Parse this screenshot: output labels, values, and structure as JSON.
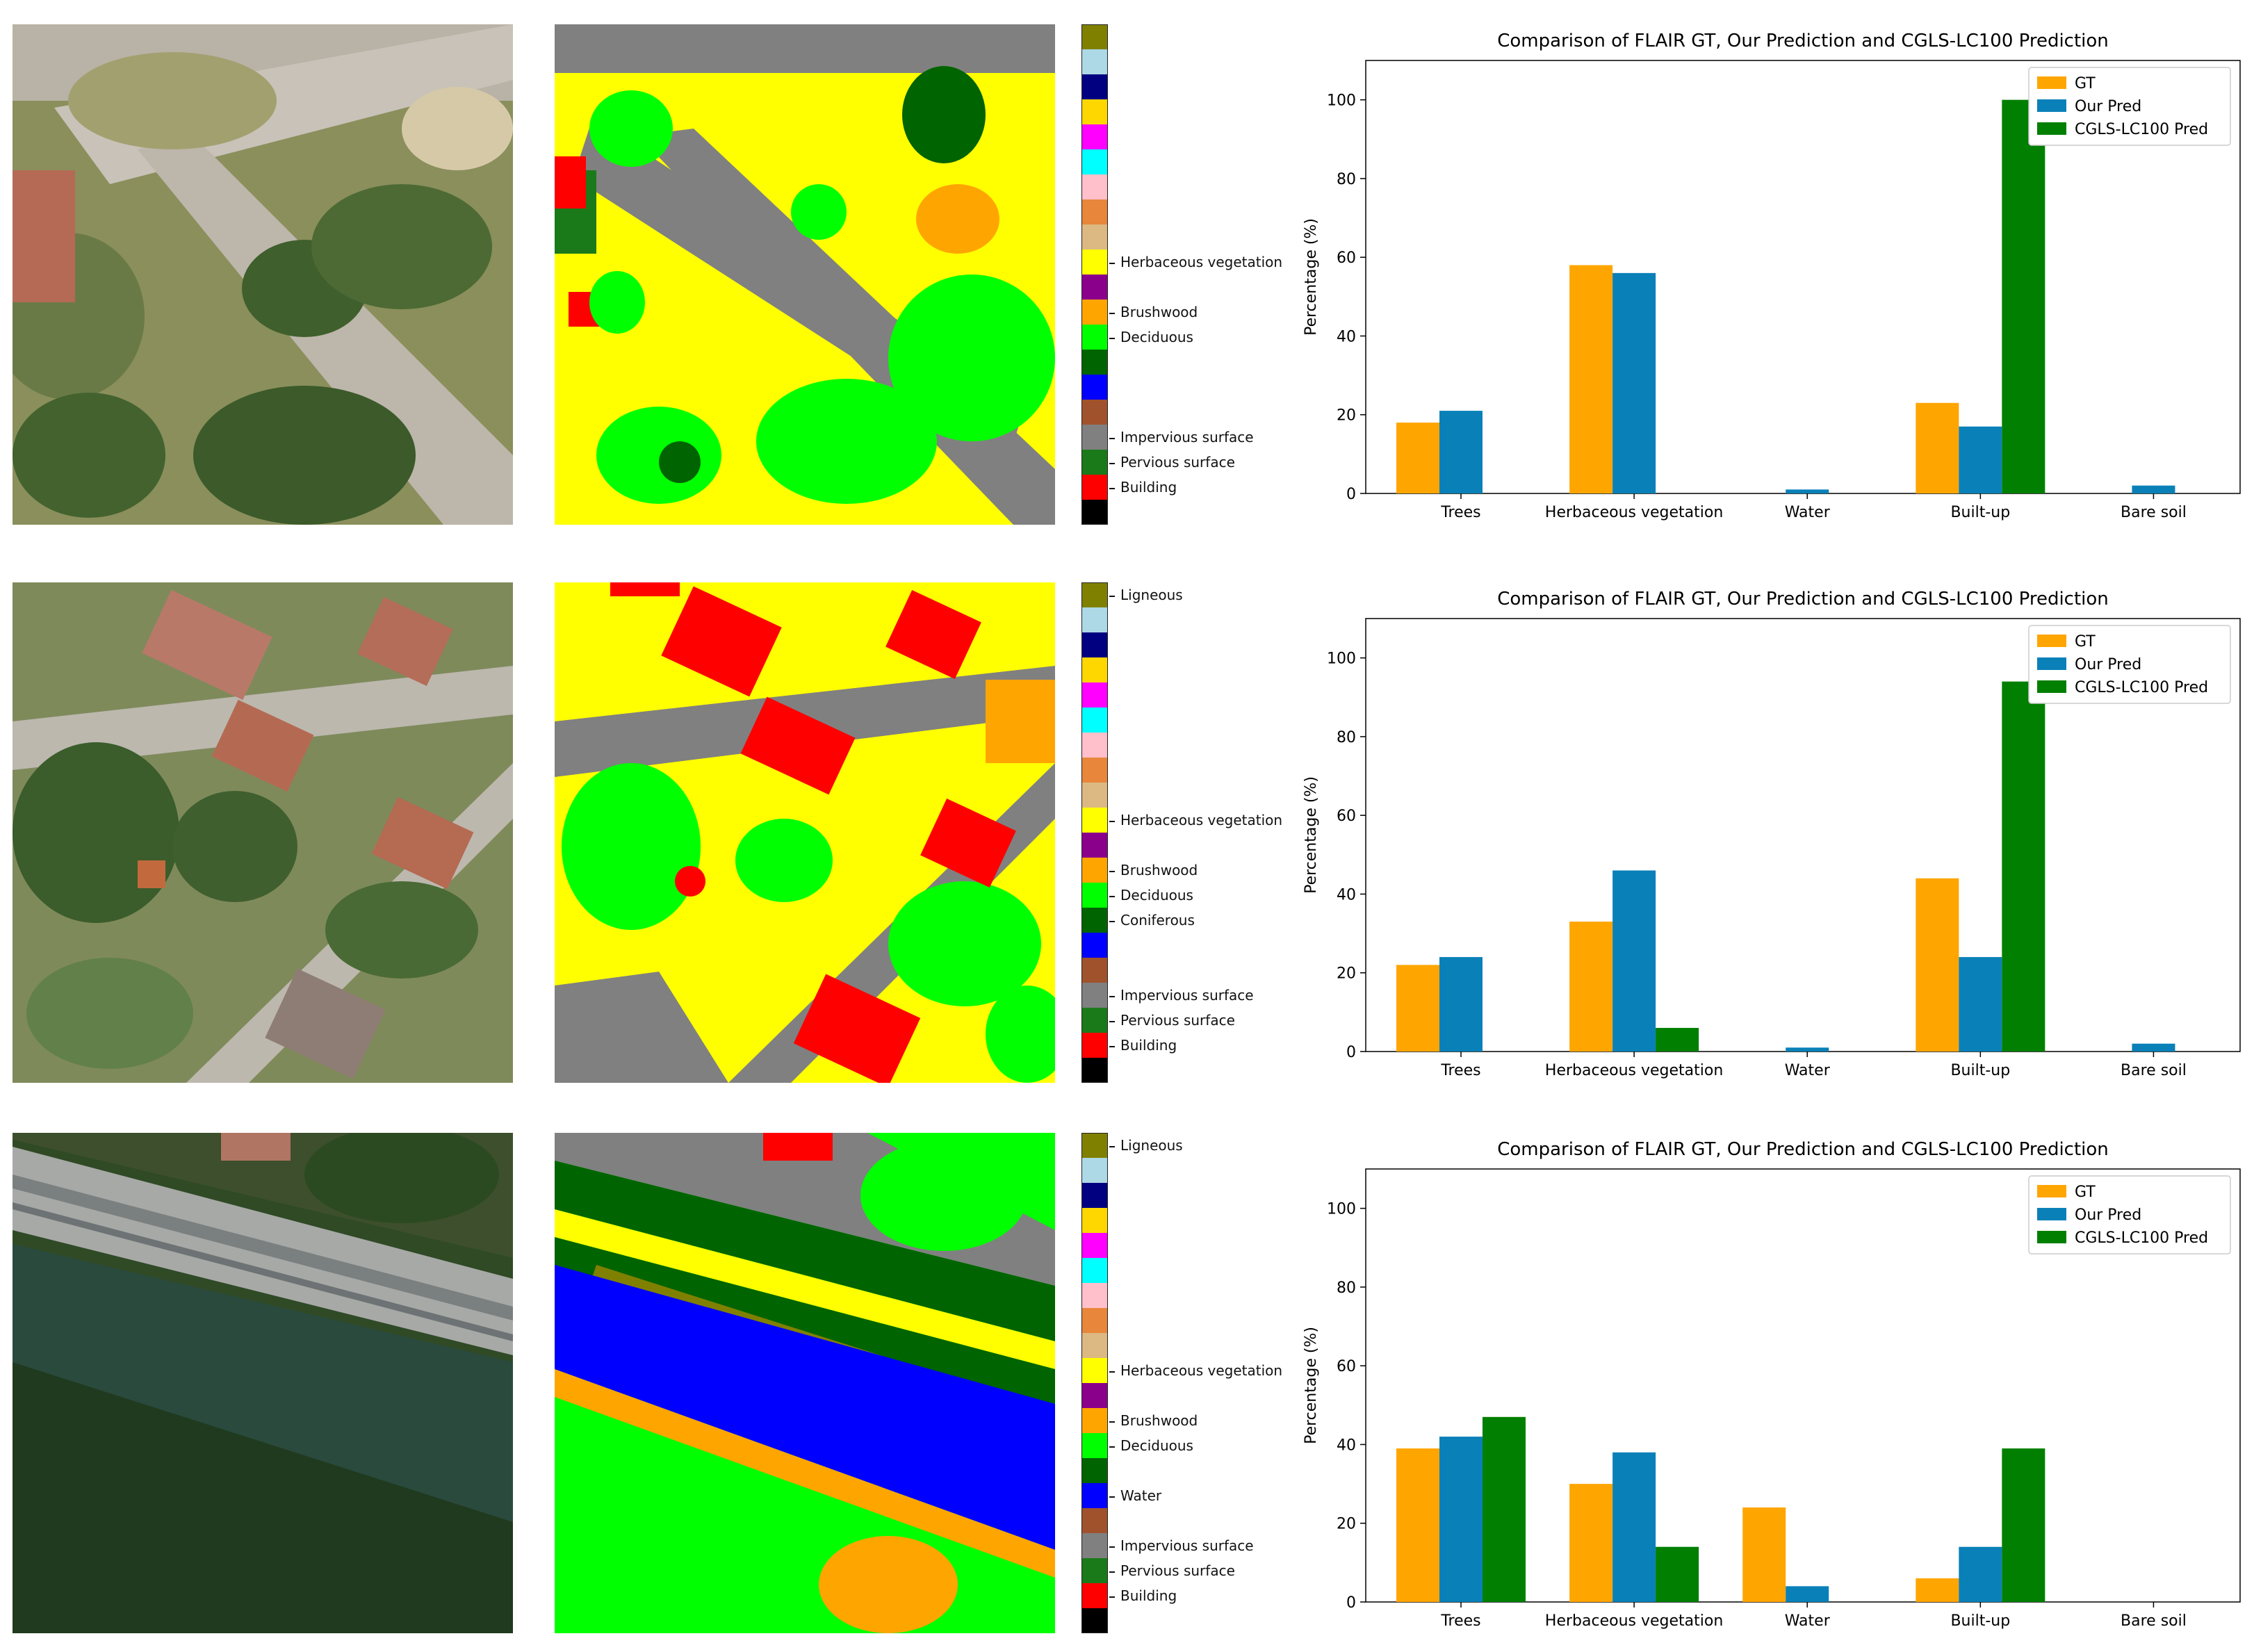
{
  "colors": {
    "gt": "#ffa500",
    "our_pred": "#0a80b8",
    "cgls": "#007f00",
    "class_palette": [
      "#000000",
      "#ff0000",
      "#1a7a1a",
      "#808080",
      "#a0522d",
      "#0000ff",
      "#006400",
      "#00ff00",
      "#ffa500",
      "#8b008b",
      "#ffff00",
      "#dcb982",
      "#e8863b",
      "#ffc0cb",
      "#00ffff",
      "#ff00ff",
      "#ffd700",
      "#000080",
      "#add8e6",
      "#808000"
    ]
  },
  "rows": [
    {
      "aerial_alt": "aerial image 1",
      "colorbar_labels": [
        {
          "label": "Herbaceous vegetation",
          "index": 10
        },
        {
          "label": "Brushwood",
          "index": 8
        },
        {
          "label": "Deciduous",
          "index": 7
        },
        {
          "label": "Impervious surface",
          "index": 3
        },
        {
          "label": "Pervious surface",
          "index": 2
        },
        {
          "label": "Building",
          "index": 1
        }
      ]
    },
    {
      "aerial_alt": "aerial image 2",
      "colorbar_labels": [
        {
          "label": "Ligneous",
          "index": 19
        },
        {
          "label": "Herbaceous vegetation",
          "index": 10
        },
        {
          "label": "Brushwood",
          "index": 8
        },
        {
          "label": "Deciduous",
          "index": 7
        },
        {
          "label": "Coniferous",
          "index": 6
        },
        {
          "label": "Impervious surface",
          "index": 3
        },
        {
          "label": "Pervious surface",
          "index": 2
        },
        {
          "label": "Building",
          "index": 1
        }
      ]
    },
    {
      "aerial_alt": "aerial image 3",
      "colorbar_labels": [
        {
          "label": "Ligneous",
          "index": 19
        },
        {
          "label": "Herbaceous vegetation",
          "index": 10
        },
        {
          "label": "Brushwood",
          "index": 8
        },
        {
          "label": "Deciduous",
          "index": 7
        },
        {
          "label": "Water",
          "index": 5
        },
        {
          "label": "Impervious surface",
          "index": 3
        },
        {
          "label": "Pervious surface",
          "index": 2
        },
        {
          "label": "Building",
          "index": 1
        }
      ]
    }
  ],
  "chart_data": [
    {
      "type": "bar",
      "title": "Comparison of FLAIR GT, Our Prediction and CGLS-LC100 Prediction",
      "xlabel": "",
      "ylabel": "Percentage (%)",
      "ylim": [
        0,
        110
      ],
      "yticks": [
        0,
        20,
        40,
        60,
        80,
        100
      ],
      "legend": "top-right",
      "categories": [
        "Trees",
        "Herbaceous vegetation",
        "Water",
        "Built-up",
        "Bare soil"
      ],
      "series": [
        {
          "name": "GT",
          "values": [
            18,
            58,
            0,
            23,
            0
          ]
        },
        {
          "name": "Our Pred",
          "values": [
            21,
            56,
            1,
            17,
            2
          ]
        },
        {
          "name": "CGLS-LC100 Pred",
          "values": [
            0,
            0,
            0,
            100,
            0
          ]
        }
      ]
    },
    {
      "type": "bar",
      "title": "Comparison of FLAIR GT, Our Prediction and CGLS-LC100 Prediction",
      "xlabel": "",
      "ylabel": "Percentage (%)",
      "ylim": [
        0,
        110
      ],
      "yticks": [
        0,
        20,
        40,
        60,
        80,
        100
      ],
      "legend": "top-right",
      "categories": [
        "Trees",
        "Herbaceous vegetation",
        "Water",
        "Built-up",
        "Bare soil"
      ],
      "series": [
        {
          "name": "GT",
          "values": [
            22,
            33,
            0,
            44,
            0
          ]
        },
        {
          "name": "Our Pred",
          "values": [
            24,
            46,
            1,
            24,
            2
          ]
        },
        {
          "name": "CGLS-LC100 Pred",
          "values": [
            0,
            6,
            0,
            94,
            0
          ]
        }
      ]
    },
    {
      "type": "bar",
      "title": "Comparison of FLAIR GT, Our Prediction and CGLS-LC100 Prediction",
      "xlabel": "",
      "ylabel": "Percentage (%)",
      "ylim": [
        0,
        110
      ],
      "yticks": [
        0,
        20,
        40,
        60,
        80,
        100
      ],
      "legend": "top-right",
      "categories": [
        "Trees",
        "Herbaceous vegetation",
        "Water",
        "Built-up",
        "Bare soil"
      ],
      "series": [
        {
          "name": "GT",
          "values": [
            39,
            30,
            24,
            6,
            0
          ]
        },
        {
          "name": "Our Pred",
          "values": [
            42,
            38,
            4,
            14,
            0
          ]
        },
        {
          "name": "CGLS-LC100 Pred",
          "values": [
            47,
            14,
            0,
            39,
            0
          ]
        }
      ]
    }
  ]
}
